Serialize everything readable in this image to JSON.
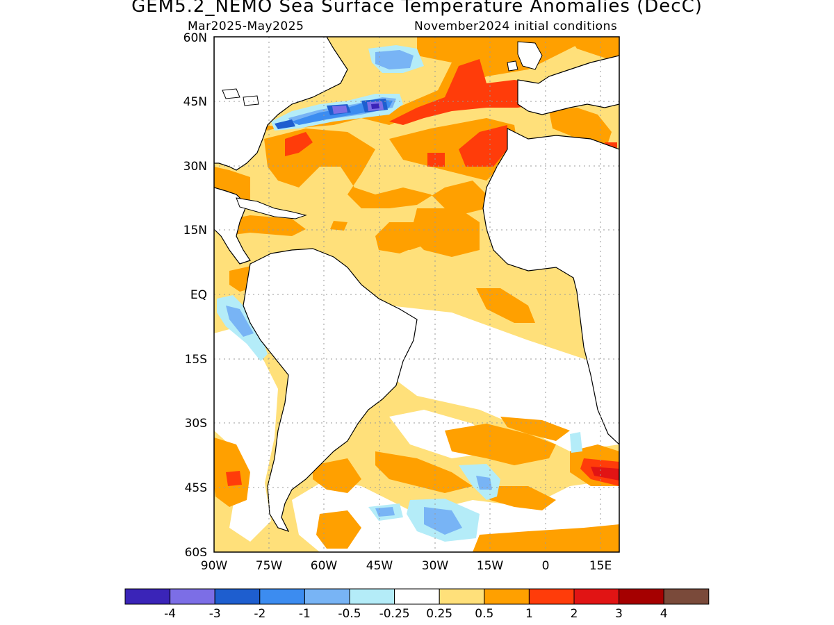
{
  "title": "GEM5.2_NEMO Sea Surface Temperature Anomalies (DecC)",
  "subtitle_left": "Mar2025-May2025",
  "subtitle_right": "November2024 initial conditions",
  "map": {
    "lon_range": [
      -90,
      20
    ],
    "lat_range": [
      -60,
      60
    ],
    "lat_ticks": [
      "60N",
      "45N",
      "30N",
      "15N",
      "EQ",
      "15S",
      "30S",
      "45S",
      "60S"
    ],
    "lon_ticks": [
      "90W",
      "75W",
      "60W",
      "45W",
      "30W",
      "15W",
      "0",
      "15E"
    ],
    "gridlines": true
  },
  "colorbar": {
    "colors": [
      "#3a24b8",
      "#7c6ee6",
      "#1e5ecf",
      "#3c8cf0",
      "#78b4f5",
      "#b4ecf8",
      "#ffffff",
      "#ffe07a",
      "#ffa000",
      "#ff3c0a",
      "#e11414",
      "#a50000",
      "#7a4a3a"
    ],
    "labels": [
      "-4",
      "-3",
      "-2",
      "-1",
      "-0.5",
      "-0.25",
      "0.25",
      "0.5",
      "1",
      "2",
      "3",
      "4"
    ]
  }
}
